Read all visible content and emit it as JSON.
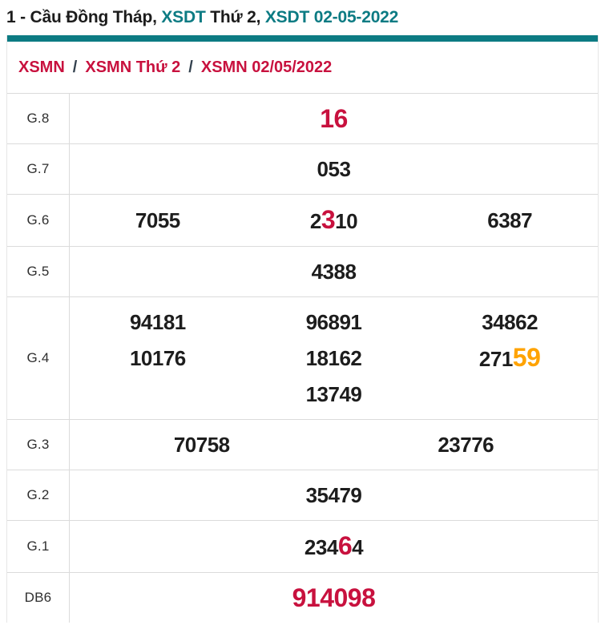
{
  "title": {
    "parts": [
      {
        "text": "1 - Cầu Đồng Tháp, ",
        "style": "dark",
        "link": false
      },
      {
        "text": "XSDT",
        "style": "teal",
        "link": true
      },
      {
        "text": " Thứ 2, ",
        "style": "dark",
        "link": false
      },
      {
        "text": "XSDT 02-05-2022",
        "style": "teal",
        "link": true
      }
    ]
  },
  "breadcrumb": {
    "separator": "/",
    "items": [
      "XSMN",
      "XSMN Thứ 2",
      "XSMN 02/05/2022"
    ]
  },
  "colors": {
    "accent_teal": "#0c7b83",
    "crimson": "#c8113e",
    "orange": "#ffa300",
    "text_dark": "#1d1d1d",
    "border": "#dbdbdb"
  },
  "table": {
    "rows": [
      {
        "label": "G.8",
        "cols": 1,
        "values": [
          [
            {
              "text": "16",
              "style": "red"
            }
          ]
        ]
      },
      {
        "label": "G.7",
        "cols": 1,
        "values": [
          [
            {
              "text": "053",
              "style": "normal"
            }
          ]
        ]
      },
      {
        "label": "G.6",
        "cols": 3,
        "values": [
          [
            {
              "text": "7055",
              "style": "normal"
            }
          ],
          [
            {
              "text": "2",
              "style": "normal"
            },
            {
              "text": "3",
              "style": "red"
            },
            {
              "text": "10",
              "style": "normal"
            }
          ],
          [
            {
              "text": "6387",
              "style": "normal"
            }
          ]
        ]
      },
      {
        "label": "G.5",
        "cols": 1,
        "values": [
          [
            {
              "text": "4388",
              "style": "normal"
            }
          ]
        ]
      },
      {
        "label": "G.4",
        "cols": 3,
        "values": [
          [
            {
              "text": "94181",
              "style": "normal"
            }
          ],
          [
            {
              "text": "96891",
              "style": "normal"
            }
          ],
          [
            {
              "text": "34862",
              "style": "normal"
            }
          ],
          [
            {
              "text": "10176",
              "style": "normal"
            }
          ],
          [
            {
              "text": "18162",
              "style": "normal"
            }
          ],
          [
            {
              "text": "271",
              "style": "normal"
            },
            {
              "text": "59",
              "style": "orange"
            }
          ],
          [
            {
              "text": "13749",
              "style": "normal"
            }
          ]
        ]
      },
      {
        "label": "G.3",
        "cols": 2,
        "values": [
          [
            {
              "text": "70758",
              "style": "normal"
            }
          ],
          [
            {
              "text": "23776",
              "style": "normal"
            }
          ]
        ]
      },
      {
        "label": "G.2",
        "cols": 1,
        "values": [
          [
            {
              "text": "35479",
              "style": "normal"
            }
          ]
        ]
      },
      {
        "label": "G.1",
        "cols": 1,
        "values": [
          [
            {
              "text": "234",
              "style": "normal"
            },
            {
              "text": "6",
              "style": "red"
            },
            {
              "text": "4",
              "style": "normal"
            }
          ]
        ]
      },
      {
        "label": "DB6",
        "cols": 1,
        "values": [
          [
            {
              "text": "914098",
              "style": "red"
            }
          ]
        ]
      }
    ]
  }
}
